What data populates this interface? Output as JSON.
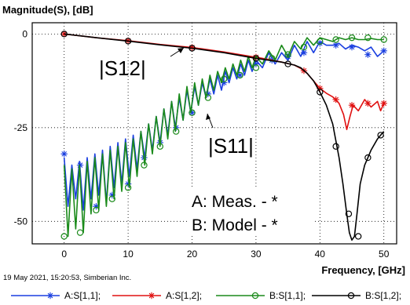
{
  "chart_data": {
    "type": "line",
    "ylabel": "Magnitude(S), [dB]",
    "xlabel": "Frequency, [GHz]",
    "xlim": [
      -5,
      52
    ],
    "ylim": [
      -56,
      3
    ],
    "x_ticks": [
      0,
      10,
      20,
      30,
      40,
      50
    ],
    "y_ticks": [
      0,
      -25,
      -50
    ],
    "grid": true,
    "footer_note": "19 May 2021, 15:20:53, Simberian Inc.",
    "annotations": {
      "s12": "|S12|",
      "s11": "|S11|",
      "legend_a": "A: Meas. - *",
      "legend_b": "B: Model - *"
    },
    "legend": [
      {
        "label": "A:S[1,1];",
        "color": "#1a3fe0",
        "marker": "asterisk"
      },
      {
        "label": "A:S[1,2];",
        "color": "#e01010",
        "marker": "asterisk"
      },
      {
        "label": "B:S[1,1];",
        "color": "#1a8a1a",
        "marker": "circle"
      },
      {
        "label": "B:S[1,2];",
        "color": "#000000",
        "marker": "circle"
      }
    ],
    "series": [
      {
        "name": "A:S[1,1];",
        "color": "#1a3fe0",
        "marker": "asterisk",
        "x": [
          0,
          0.6,
          1.2,
          1.8,
          2.4,
          3.0,
          3.6,
          4.2,
          4.8,
          5.4,
          6.0,
          6.6,
          7.2,
          7.8,
          8.4,
          9.0,
          9.6,
          10.2,
          10.8,
          11.4,
          12.0,
          12.6,
          13.2,
          13.8,
          14.4,
          15.0,
          15.6,
          16.2,
          16.8,
          17.4,
          18.0,
          18.6,
          19.2,
          19.8,
          20.4,
          21.0,
          21.6,
          22.2,
          22.8,
          23.4,
          24.0,
          24.6,
          25.2,
          25.8,
          26.4,
          27.0,
          27.6,
          28.2,
          28.8,
          29.4,
          30.0,
          31.0,
          32.0,
          33.0,
          34.0,
          35.0,
          36.0,
          37.0,
          38.0,
          39.0,
          40.0,
          41.0,
          42.0,
          43.0,
          44.0,
          45.0,
          46.0,
          47.0,
          48.0,
          49.0,
          50.0
        ],
        "y": [
          -33,
          -46,
          -35,
          -44,
          -34,
          -47,
          -33,
          -44,
          -32,
          -43,
          -31,
          -45,
          -30,
          -41,
          -29,
          -40,
          -28,
          -38,
          -27,
          -36,
          -26,
          -33,
          -24,
          -31,
          -22,
          -29,
          -20,
          -27,
          -18,
          -25,
          -17,
          -23,
          -15,
          -21,
          -14,
          -19,
          -13,
          -17,
          -12,
          -16,
          -11,
          -15,
          -10,
          -13,
          -9,
          -12,
          -8,
          -11,
          -7,
          -10,
          -7,
          -9,
          -5,
          -8,
          -5,
          -7,
          -3,
          -6,
          -2,
          -5,
          -2,
          -3,
          -3,
          -2.5,
          -4,
          -3,
          -3.5,
          -4.5,
          -3.5,
          -6,
          -4.5
        ],
        "marker_x": [
          0,
          2.5,
          5,
          7.5,
          10,
          12.5,
          15,
          17.5,
          20,
          22.5,
          25,
          27.5,
          30,
          32.5,
          35,
          37.5,
          40,
          42.5,
          45,
          47.5,
          50
        ],
        "marker_y": [
          -32,
          -35,
          -46,
          -43,
          -40,
          -33,
          -29,
          -25,
          -21,
          -16,
          -13,
          -11,
          -8,
          -7,
          -6,
          -5,
          -2.5,
          -3,
          -3.5,
          -5.5,
          -4.5
        ]
      },
      {
        "name": "A:S[1,2];",
        "color": "#e01010",
        "marker": "asterisk",
        "x": [
          0,
          5,
          10,
          15,
          20,
          25,
          30,
          32,
          34,
          36,
          37,
          38,
          39,
          40,
          41,
          42,
          43,
          43.7,
          44.2,
          44.7,
          45.2,
          46,
          47,
          48,
          49,
          49.5,
          50
        ],
        "y": [
          0,
          -1,
          -1.8,
          -2.8,
          -3.6,
          -4.8,
          -6.2,
          -6.8,
          -7.5,
          -8.3,
          -9.2,
          -10.5,
          -12.5,
          -14.5,
          -15.8,
          -16.8,
          -18.5,
          -21.5,
          -25.5,
          -22,
          -19,
          -20.5,
          -17.5,
          -19.5,
          -18,
          -20.5,
          -18.5
        ],
        "marker_x": [
          0,
          10,
          20,
          30,
          37.5,
          40,
          42.5,
          45,
          47.5,
          50
        ],
        "marker_y": [
          0,
          -1.8,
          -3.6,
          -6.2,
          -9.8,
          -14.5,
          -17.5,
          -19,
          -18.5,
          -18.5
        ]
      },
      {
        "name": "B:S[1,1];",
        "color": "#1a8a1a",
        "marker": "circle",
        "x": [
          0,
          0.6,
          1.2,
          1.8,
          2.4,
          3.0,
          3.6,
          4.2,
          4.8,
          5.4,
          6.0,
          6.6,
          7.2,
          7.8,
          8.4,
          9.0,
          9.6,
          10.2,
          10.8,
          11.4,
          12.0,
          12.6,
          13.2,
          13.8,
          14.4,
          15.0,
          15.6,
          16.2,
          16.8,
          17.4,
          18.0,
          18.6,
          19.2,
          19.8,
          20.4,
          21.0,
          21.6,
          22.2,
          22.8,
          23.4,
          24.0,
          24.6,
          25.2,
          25.8,
          26.4,
          27.0,
          27.6,
          28.2,
          28.8,
          29.4,
          30.0,
          31.0,
          32.0,
          33.0,
          34.0,
          35.0,
          36.0,
          37.0,
          38.0,
          39.0,
          40.0,
          41.0,
          42.0,
          43.0,
          44.0,
          45.0,
          46.0,
          47.0,
          48.0,
          49.0,
          50.0
        ],
        "y": [
          -35,
          -54,
          -36,
          -52,
          -35,
          -53,
          -34,
          -48,
          -33,
          -47,
          -32,
          -46,
          -31,
          -44,
          -30,
          -42,
          -29,
          -41,
          -28,
          -38,
          -26,
          -35,
          -24,
          -32,
          -22,
          -30,
          -20,
          -28,
          -18,
          -26,
          -16,
          -23,
          -14,
          -21,
          -13,
          -19,
          -12,
          -17,
          -11,
          -15,
          -10,
          -13,
          -9,
          -12,
          -8,
          -11,
          -7,
          -10,
          -6,
          -9,
          -6,
          -8,
          -4.5,
          -7,
          -3,
          -6,
          -2,
          -4,
          -1,
          -3,
          -1,
          -1.5,
          -2,
          -1,
          -1.5,
          -1,
          -1.5,
          -1.5,
          -1.2,
          -1.5,
          -1.5
        ],
        "marker_x": [
          0,
          2.5,
          5,
          7.5,
          10,
          12.5,
          15,
          17.5,
          20,
          22.5,
          25,
          27.5,
          30,
          32.5,
          35,
          37.5,
          40,
          42.5,
          45,
          47.5,
          50
        ],
        "marker_y": [
          -54,
          -53,
          -47,
          -44,
          -41,
          -35,
          -30,
          -26,
          -21,
          -17,
          -12,
          -11,
          -9,
          -6.5,
          -5.5,
          -3.5,
          -2,
          -1.5,
          -1,
          -1,
          -1.5
        ]
      },
      {
        "name": "B:S[1,2];",
        "color": "#000000",
        "marker": "circle",
        "x": [
          0,
          5,
          10,
          15,
          20,
          25,
          30,
          32,
          34,
          36,
          37,
          38,
          39,
          40,
          41,
          42,
          43,
          43.6,
          44.2,
          44.6,
          45.0,
          45.4,
          45.8,
          46.3,
          47,
          47.5,
          48,
          49,
          49.5,
          50
        ],
        "y": [
          0,
          -1,
          -1.9,
          -2.9,
          -3.8,
          -5,
          -6.5,
          -7,
          -7.5,
          -8.3,
          -9,
          -10.5,
          -12.5,
          -15.5,
          -19,
          -24,
          -33,
          -40,
          -48,
          -53,
          -55,
          -54,
          -48,
          -40,
          -35,
          -33,
          -31,
          -28,
          -27,
          -26
        ],
        "marker_x": [
          0,
          10,
          20,
          30,
          35,
          40,
          42.5,
          44.5,
          46,
          47.5,
          49.5
        ],
        "marker_y": [
          0,
          -1.9,
          -3.8,
          -6.5,
          -8,
          -15.5,
          -30,
          -48,
          -54,
          -33,
          -27
        ]
      }
    ]
  }
}
